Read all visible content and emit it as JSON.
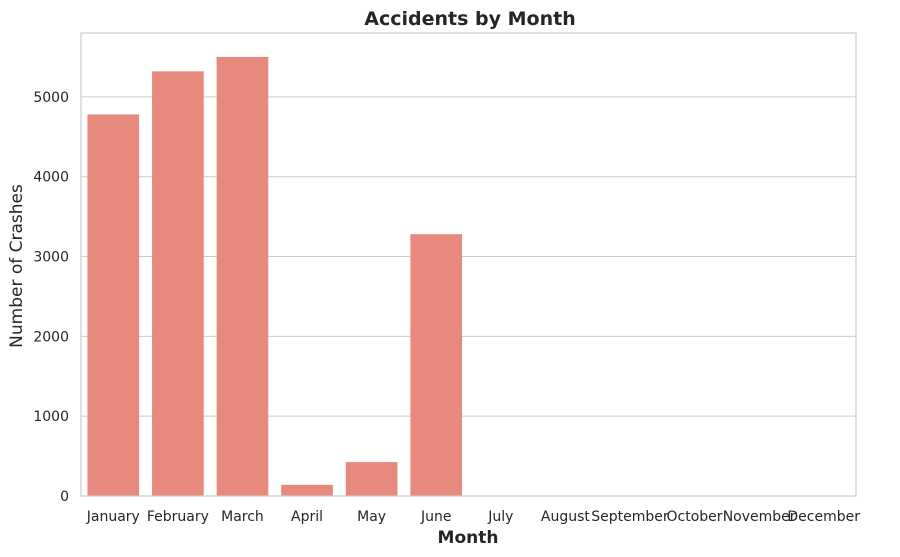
{
  "chart_data": {
    "type": "bar",
    "title": "Accidents by Month",
    "xlabel": "Month",
    "ylabel": "Number of Crashes",
    "categories": [
      "January",
      "February",
      "March",
      "April",
      "May",
      "June",
      "July",
      "August",
      "September",
      "October",
      "November",
      "December"
    ],
    "values": [
      4780,
      5320,
      5500,
      140,
      425,
      3280,
      0,
      0,
      0,
      0,
      0,
      0
    ],
    "ylim": [
      0,
      5800
    ],
    "yticks": [
      0,
      1000,
      2000,
      3000,
      4000,
      5000
    ],
    "ytick_labels": [
      "0",
      "1000",
      "2000",
      "3000",
      "4000",
      "5000"
    ],
    "grid": true,
    "bar_color": "#e8897d",
    "grid_color": "#cccccc",
    "spine_color": "#cccccc"
  }
}
